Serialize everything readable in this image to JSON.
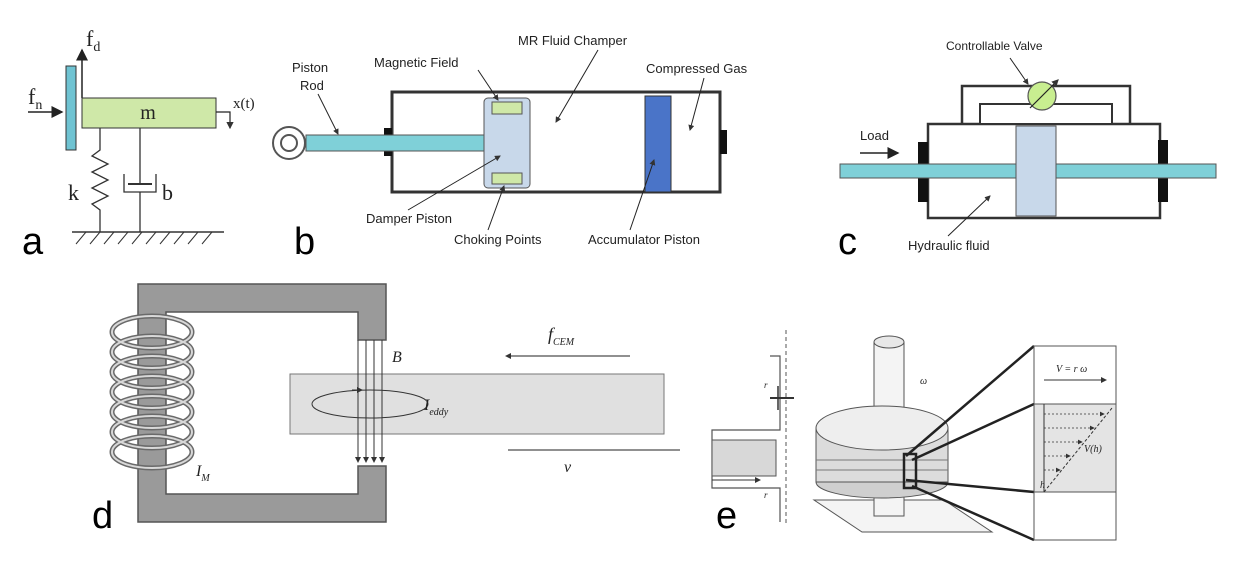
{
  "panel_a": {
    "letter": "a",
    "labels": {
      "fd": "f",
      "fd_sub": "d",
      "fn": "f",
      "fn_sub": "n",
      "mass": "m",
      "xt": "x(t)",
      "k": "k",
      "b": "b"
    },
    "colors": {
      "mass": "#cfe8a8",
      "wall": "#6fc3d2"
    }
  },
  "panel_b": {
    "letter": "b",
    "labels": {
      "piston_rod_1": "Piston",
      "piston_rod_2": "Rod",
      "magnetic_field": "Magnetic Field",
      "mr_chamber": "MR Fluid Champer",
      "compressed_gas": "Compressed Gas",
      "damper_piston": "Damper Piston",
      "choking_points": "Choking Points",
      "accumulator_piston": "Accumulator Piston"
    },
    "colors": {
      "rod": "#7fd0d8",
      "piston": "#c8d8ea",
      "accumulator": "#4a74c8"
    }
  },
  "panel_c": {
    "letter": "c",
    "labels": {
      "valve": "Controllable Valve",
      "load": "Load",
      "fluid": "Hydraulic fluid"
    },
    "colors": {
      "rod": "#7fd0d8",
      "piston": "#c8d8ea",
      "valve": "#c8ee90"
    }
  },
  "panel_d": {
    "letter": "d",
    "labels": {
      "f": "f",
      "f_sub": "CEM",
      "B": "B",
      "I": "I",
      "I_sub": "eddy",
      "IM": "I",
      "IM_sub": "M",
      "v": "v"
    },
    "colors": {
      "core": "#9a9a9a",
      "plate": "#e0e0e0"
    }
  },
  "panel_e": {
    "letter": "e",
    "labels": {
      "V": "V = r ω",
      "Vh": "V(h)",
      "h": "h",
      "omega": "ω",
      "ri": "r",
      "ro": "r"
    }
  }
}
